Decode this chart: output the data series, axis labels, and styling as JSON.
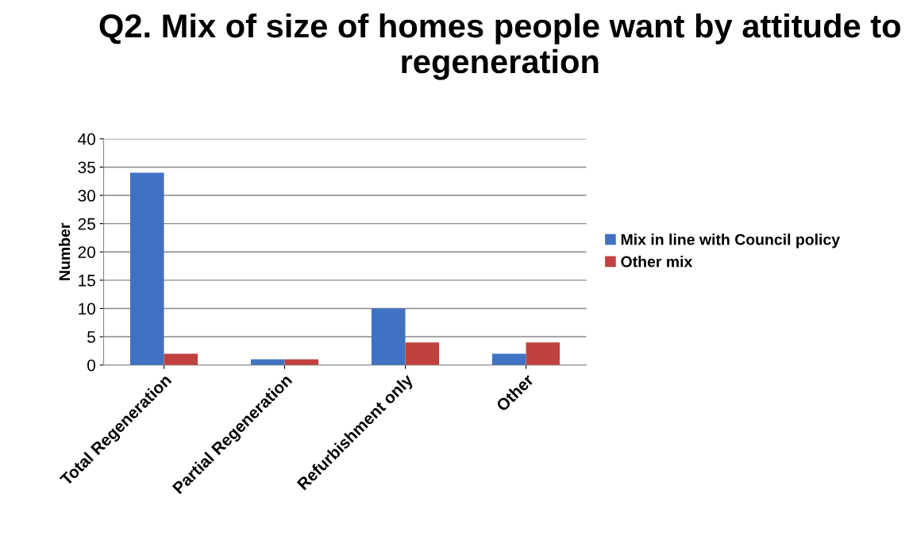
{
  "chart_data": {
    "type": "bar",
    "title": "Q2. Mix of size of homes people want by attitude to regeneration",
    "ylabel": "Number",
    "categories": [
      "Total Regeneration",
      "Partial Regeneration",
      "Refurbishment only",
      "Other"
    ],
    "series": [
      {
        "name": "Mix in line with Council policy",
        "color": "#3f72c2",
        "values": [
          34,
          1,
          10,
          2
        ]
      },
      {
        "name": "Other mix",
        "color": "#c0413e",
        "values": [
          2,
          1,
          4,
          4
        ]
      }
    ],
    "ylim": [
      0,
      40
    ],
    "yticks": [
      0,
      5,
      10,
      15,
      20,
      25,
      30,
      35,
      40
    ],
    "grid": "y",
    "legend": "right"
  }
}
